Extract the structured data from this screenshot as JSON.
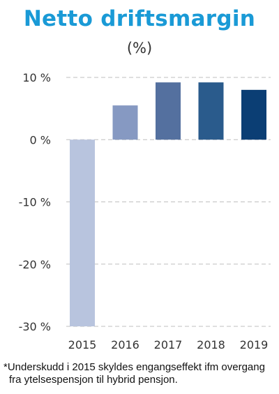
{
  "chart_data": {
    "type": "bar",
    "title": "Netto driftsmargin",
    "subtitle": "(%)",
    "categories": [
      "2015",
      "2016",
      "2017",
      "2018",
      "2019"
    ],
    "values": [
      -30,
      5.5,
      9.2,
      9.2,
      8.0
    ],
    "ylim": [
      -30,
      10
    ],
    "yticks": [
      10,
      0,
      -10,
      -20,
      -30
    ],
    "ytick_labels": [
      "10 %",
      "0 %",
      "-10 %",
      "-20 %",
      "-30 %"
    ],
    "grid": true,
    "legend": "none",
    "bar_colors": [
      "#b8c4de",
      "#8699c2",
      "#54709f",
      "#2a5b8c",
      "#0b3e74"
    ],
    "gridline_color": "#bfbfbf",
    "title_color": "#1a9ad6",
    "footnote": [
      "*Underskudd i 2015 skyldes engangseffekt ifm overgang",
      "fra ytelsespensjon  til hybrid pensjon."
    ]
  }
}
